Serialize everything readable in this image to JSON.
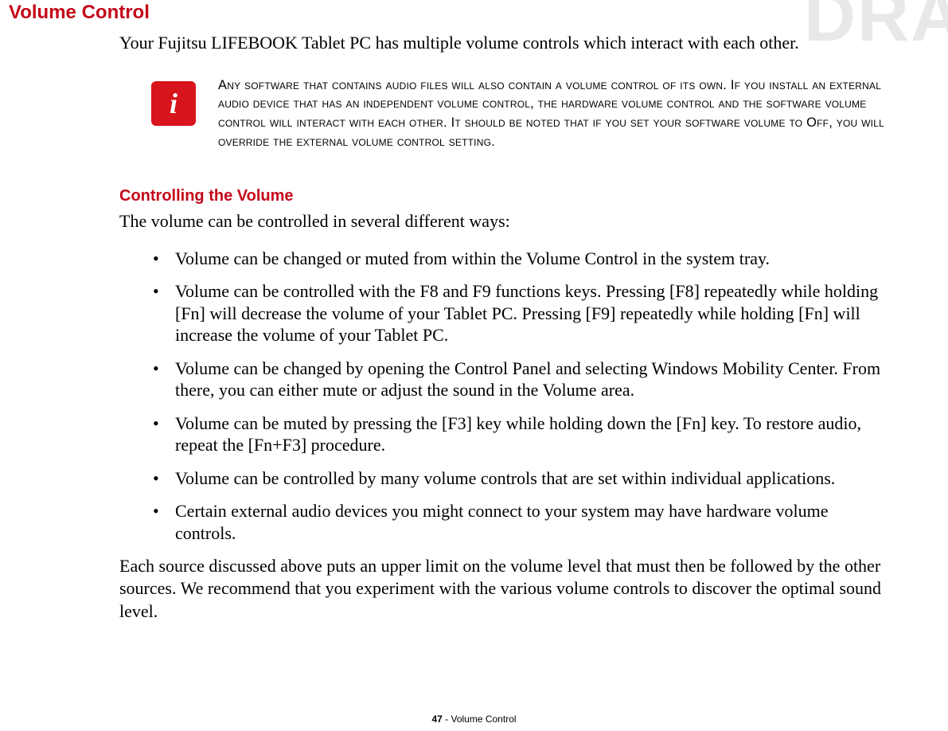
{
  "watermark": "DRA",
  "page": {
    "title": "Volume Control",
    "intro": "Your Fujitsu LIFEBOOK Tablet PC has multiple volume controls which interact with each other.",
    "note": {
      "icon_glyph": "i",
      "icon_bg": "#d8141c",
      "icon_fg": "#ffffff",
      "text": "Any software that contains audio files will also contain a volume control of its own. If you install an external audio device that has an independent volume control, the hardware volume control and the software volume control will interact with each other. It should be noted that if you set your software volume to Off, you will override the external volume control setting."
    },
    "section_title": "Controlling the Volume",
    "section_lead": "The volume can be controlled in several different ways:",
    "bullets": [
      "Volume can be changed or muted from within the Volume Control in the system tray.",
      "Volume can be controlled with the F8 and F9 functions keys. Pressing [F8] repeatedly while holding [Fn] will decrease the volume of your Tablet PC. Pressing [F9] repeatedly while holding [Fn] will increase the volume of your Tablet PC.",
      "Volume can be changed by opening the Control Panel and selecting Windows Mobility Center. From there, you can either mute or adjust the sound in the Volume area.",
      "Volume can be muted by pressing the [F3] key while holding down the [Fn] key. To restore audio, repeat the [Fn+F3] procedure.",
      "Volume can be controlled by many volume controls that are set within individual applications.",
      "Certain external audio devices you might connect to your system may have hardware volume controls."
    ],
    "closing": "Each source discussed above puts an upper limit on the volume level that must then be followed by the other sources. We recommend that you experiment with the various volume controls to discover the optimal sound level."
  },
  "footer": {
    "page_number": "47",
    "section": "Volume Control"
  },
  "colors": {
    "heading": "#c40818",
    "body": "#000000",
    "watermark": "#e8e8e8"
  }
}
